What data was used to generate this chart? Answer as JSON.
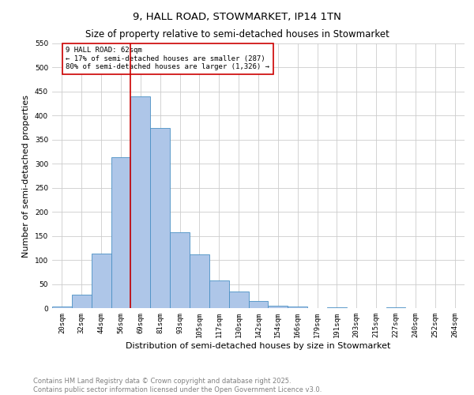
{
  "title": "9, HALL ROAD, STOWMARKET, IP14 1TN",
  "subtitle": "Size of property relative to semi-detached houses in Stowmarket",
  "xlabel": "Distribution of semi-detached houses by size in Stowmarket",
  "ylabel": "Number of semi-detached properties",
  "footnote1": "Contains HM Land Registry data © Crown copyright and database right 2025.",
  "footnote2": "Contains public sector information licensed under the Open Government Licence v3.0.",
  "bar_labels": [
    "20sqm",
    "32sqm",
    "44sqm",
    "56sqm",
    "69sqm",
    "81sqm",
    "93sqm",
    "105sqm",
    "117sqm",
    "130sqm",
    "142sqm",
    "154sqm",
    "166sqm",
    "179sqm",
    "191sqm",
    "203sqm",
    "215sqm",
    "227sqm",
    "240sqm",
    "252sqm",
    "264sqm"
  ],
  "bar_values": [
    3,
    28,
    113,
    313,
    440,
    375,
    158,
    111,
    58,
    35,
    14,
    5,
    4,
    0,
    2,
    0,
    0,
    1,
    0,
    0,
    0
  ],
  "bar_color": "#aec6e8",
  "bar_edge_color": "#4a90c4",
  "vline_x": 3.5,
  "vline_color": "#cc0000",
  "annotation_title": "9 HALL ROAD: 62sqm",
  "annotation_line1": "← 17% of semi-detached houses are smaller (287)",
  "annotation_line2": "80% of semi-detached houses are larger (1,326) →",
  "annotation_box_color": "#cc0000",
  "ylim": [
    0,
    550
  ],
  "yticks": [
    0,
    50,
    100,
    150,
    200,
    250,
    300,
    350,
    400,
    450,
    500,
    550
  ],
  "background_color": "#ffffff",
  "grid_color": "#cccccc",
  "title_fontsize": 9.5,
  "subtitle_fontsize": 8.5,
  "axis_label_fontsize": 8,
  "tick_fontsize": 6.5,
  "annotation_fontsize": 6.5,
  "footnote_fontsize": 6
}
